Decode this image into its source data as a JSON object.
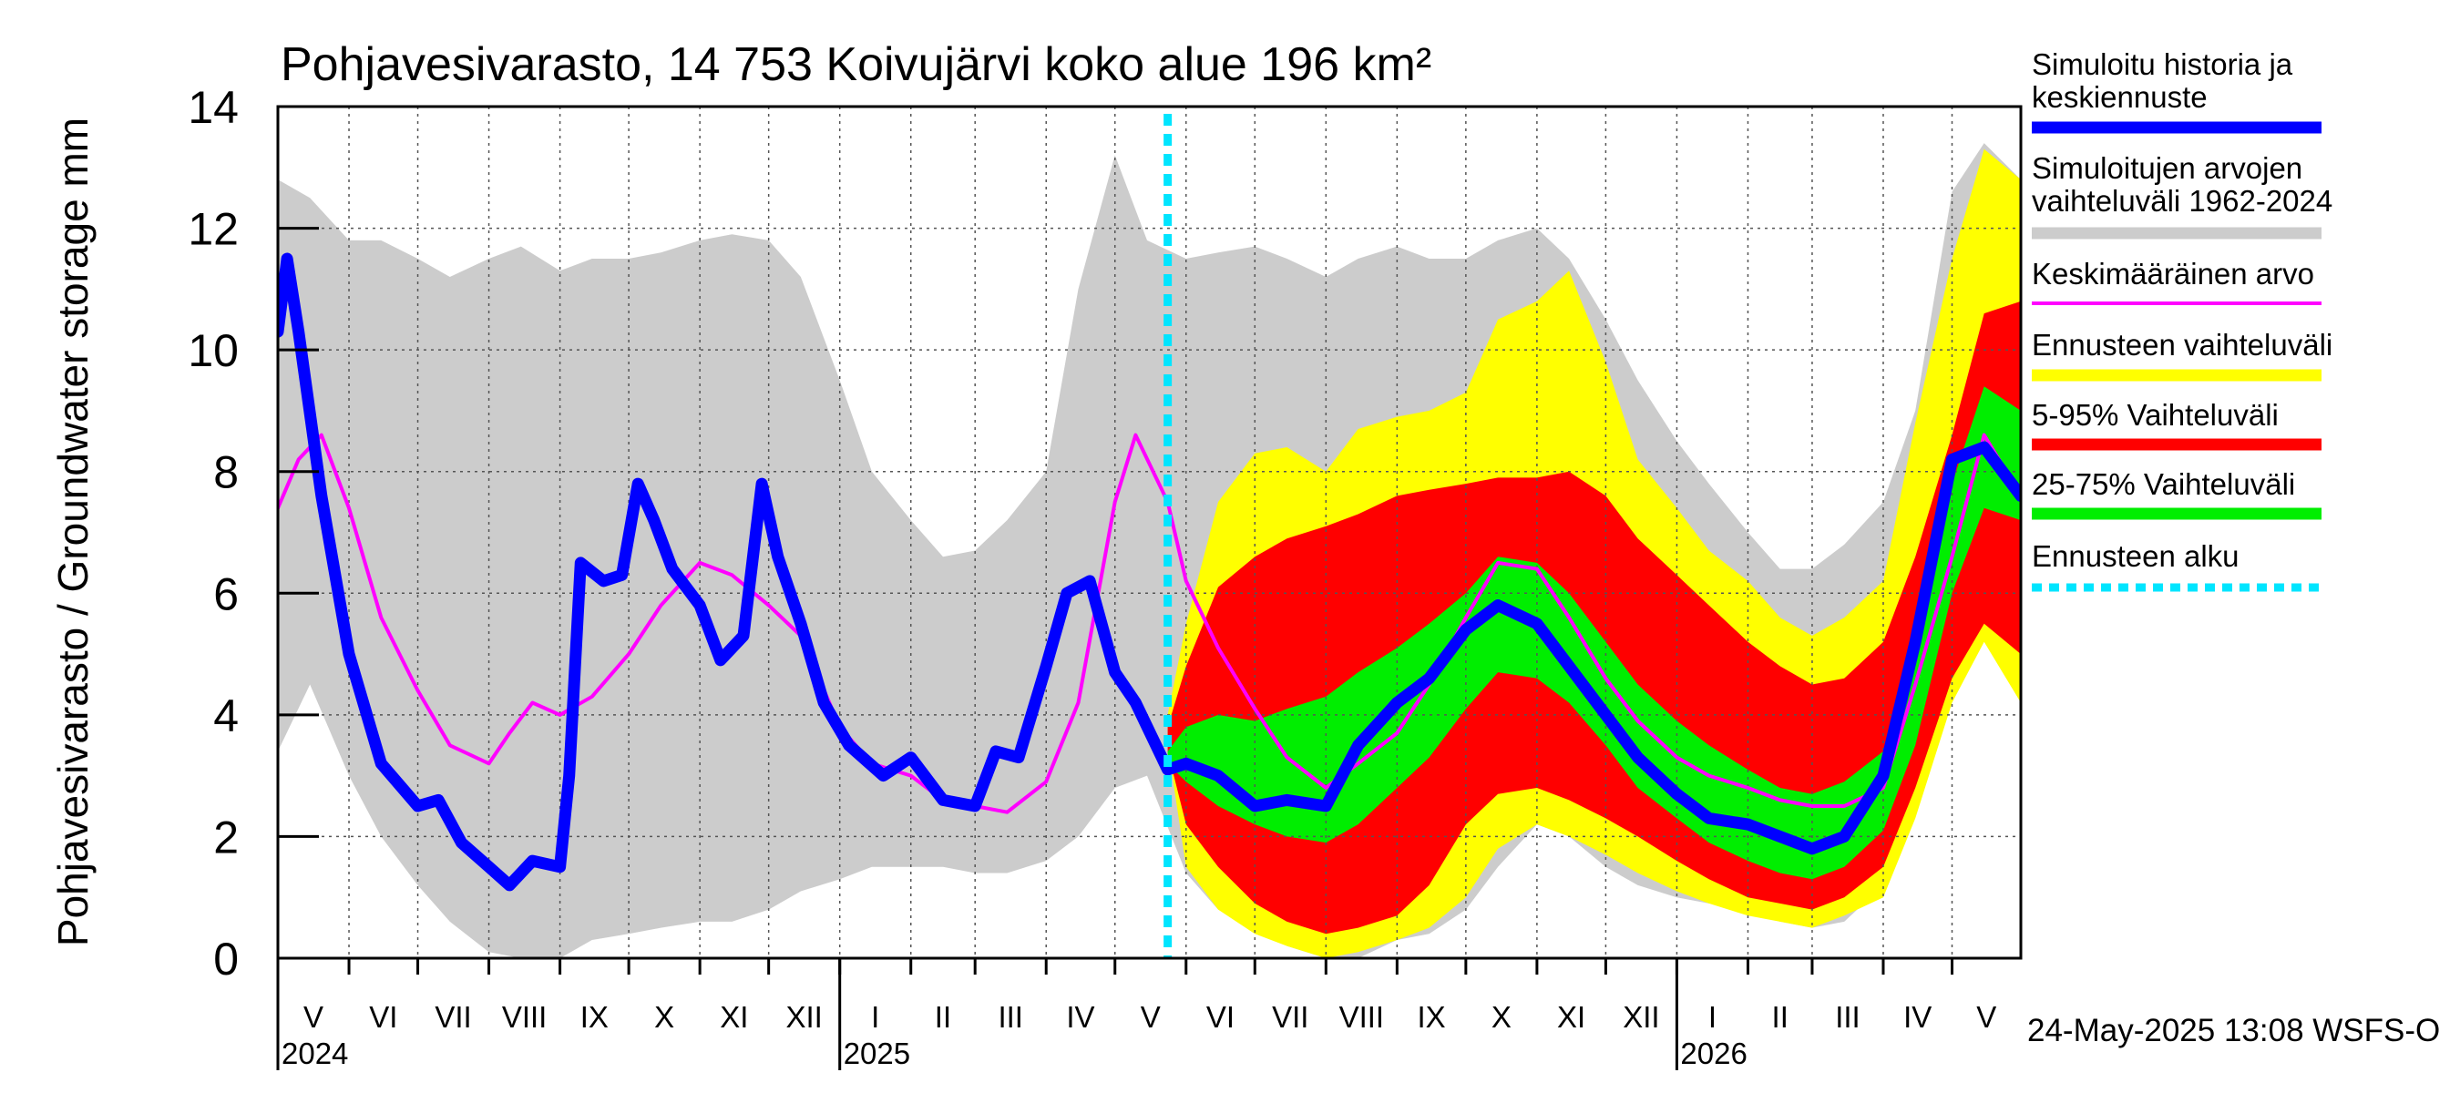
{
  "chart_data": {
    "type": "area",
    "title": "Pohjavesivarasto, 14 753 Koivujärvi koko alue 196 km²",
    "ylabel": "Pohjavesivarasto / Groundwater storage   mm",
    "ylim": [
      0,
      14
    ],
    "yticks": [
      "0",
      "2",
      "4",
      "6",
      "8",
      "10",
      "12",
      "14"
    ],
    "x_start": "2024-05-01",
    "x_end": "2026-05-31",
    "forecast_start": "2025-05-24",
    "months": [
      "V",
      "VI",
      "VII",
      "VIII",
      "IX",
      "X",
      "XI",
      "XII",
      "I",
      "II",
      "III",
      "IV",
      "V",
      "VI",
      "VII",
      "VIII",
      "IX",
      "X",
      "XI",
      "XII",
      "I",
      "II",
      "III",
      "IV",
      "V"
    ],
    "years": [
      {
        "label": "2024",
        "date": "2024-05-01"
      },
      {
        "label": "2025",
        "date": "2025-01-01"
      },
      {
        "label": "2026",
        "date": "2026-01-01"
      }
    ],
    "legend": [
      {
        "label": "Simuloitu historia ja keskiennuste",
        "color": "#0000ff",
        "style": "thick"
      },
      {
        "label": "Simuloitujen arvojen vaihteluväli 1962-2024",
        "color": "#cccccc",
        "style": "thick"
      },
      {
        "label": "Keskimääräinen arvo",
        "color": "#ff00ff",
        "style": "thin"
      },
      {
        "label": "Ennusteen vaihteluväli",
        "color": "#ffff00",
        "style": "thick"
      },
      {
        "label": "5-95% Vaihteluväli",
        "color": "#ff0000",
        "style": "thick"
      },
      {
        "label": "25-75% Vaihteluväli",
        "color": "#00ee00",
        "style": "thick"
      },
      {
        "label": "Ennusteen alku",
        "color": "#00e5ff",
        "style": "dotted"
      }
    ],
    "footer": "24-May-2025 13:08 WSFS-O",
    "series": [
      {
        "name": "Simuloitujen arvojen vaihteluväli 1962-2024",
        "kind": "band",
        "color": "#cccccc",
        "x": [
          "2024-05-01",
          "2024-05-15",
          "2024-06-01",
          "2024-06-15",
          "2024-07-01",
          "2024-07-15",
          "2024-08-01",
          "2024-08-15",
          "2024-09-01",
          "2024-09-15",
          "2024-10-01",
          "2024-10-15",
          "2024-11-01",
          "2024-11-15",
          "2024-12-01",
          "2024-12-15",
          "2025-01-01",
          "2025-01-15",
          "2025-02-01",
          "2025-02-15",
          "2025-03-01",
          "2025-03-15",
          "2025-04-01",
          "2025-04-15",
          "2025-05-01",
          "2025-05-15",
          "2025-06-01",
          "2025-06-15",
          "2025-07-01",
          "2025-07-15",
          "2025-08-01",
          "2025-08-15",
          "2025-09-01",
          "2025-09-15",
          "2025-10-01",
          "2025-10-15",
          "2025-11-01",
          "2025-11-15",
          "2025-12-01",
          "2025-12-15",
          "2026-01-01",
          "2026-01-15",
          "2026-02-01",
          "2026-02-15",
          "2026-03-01",
          "2026-03-15",
          "2026-04-01",
          "2026-04-15",
          "2026-05-01",
          "2026-05-15",
          "2026-05-31"
        ],
        "low": [
          3.4,
          4.5,
          3.0,
          2.0,
          1.2,
          0.6,
          0.1,
          0.0,
          0.0,
          0.3,
          0.4,
          0.5,
          0.6,
          0.6,
          0.8,
          1.1,
          1.3,
          1.5,
          1.5,
          1.5,
          1.4,
          1.4,
          1.6,
          2.0,
          2.8,
          3.0,
          1.4,
          0.8,
          0.6,
          0.2,
          0.0,
          0.0,
          0.3,
          0.4,
          0.8,
          1.5,
          2.2,
          2.0,
          1.5,
          1.2,
          1.0,
          0.9,
          0.8,
          0.6,
          0.5,
          0.6,
          1.2,
          2.5,
          4.5,
          5.3,
          4.5
        ],
        "high": [
          12.8,
          12.5,
          11.8,
          11.8,
          11.5,
          11.2,
          11.5,
          11.7,
          11.3,
          11.5,
          11.5,
          11.6,
          11.8,
          11.9,
          11.8,
          11.2,
          9.5,
          8.0,
          7.2,
          6.6,
          6.7,
          7.2,
          8.0,
          11.0,
          13.2,
          11.8,
          11.5,
          11.6,
          11.7,
          11.5,
          11.2,
          11.5,
          11.7,
          11.5,
          11.5,
          11.8,
          12.0,
          11.5,
          10.5,
          9.5,
          8.5,
          7.8,
          7.0,
          6.4,
          6.4,
          6.8,
          7.5,
          9.0,
          12.6,
          13.4,
          12.8
        ]
      },
      {
        "name": "Ennusteen vaihteluväli",
        "kind": "band",
        "color": "#ffff00",
        "x": [
          "2025-05-24",
          "2025-06-01",
          "2025-06-15",
          "2025-07-01",
          "2025-07-15",
          "2025-08-01",
          "2025-08-15",
          "2025-09-01",
          "2025-09-15",
          "2025-10-01",
          "2025-10-15",
          "2025-11-01",
          "2025-11-15",
          "2025-12-01",
          "2025-12-15",
          "2026-01-01",
          "2026-01-15",
          "2026-02-01",
          "2026-02-15",
          "2026-03-01",
          "2026-03-15",
          "2026-04-01",
          "2026-04-15",
          "2026-05-01",
          "2026-05-15",
          "2026-05-31"
        ],
        "low": [
          3.5,
          1.5,
          0.8,
          0.4,
          0.2,
          0.0,
          0.1,
          0.3,
          0.5,
          1.0,
          1.8,
          2.2,
          2.0,
          1.7,
          1.4,
          1.1,
          0.9,
          0.7,
          0.6,
          0.5,
          0.7,
          1.0,
          2.3,
          4.2,
          5.2,
          4.2
        ],
        "high": [
          4.0,
          5.5,
          7.5,
          8.3,
          8.4,
          8.0,
          8.7,
          8.9,
          9.0,
          9.3,
          10.5,
          10.8,
          11.3,
          9.8,
          8.2,
          7.4,
          6.7,
          6.2,
          5.6,
          5.3,
          5.6,
          6.2,
          8.8,
          11.5,
          13.3,
          12.8
        ]
      },
      {
        "name": "5-95% Vaihteluväli",
        "kind": "band",
        "color": "#ff0000",
        "x": [
          "2025-05-24",
          "2025-06-01",
          "2025-06-15",
          "2025-07-01",
          "2025-07-15",
          "2025-08-01",
          "2025-08-15",
          "2025-09-01",
          "2025-09-15",
          "2025-10-01",
          "2025-10-15",
          "2025-11-01",
          "2025-11-15",
          "2025-12-01",
          "2025-12-15",
          "2026-01-01",
          "2026-01-15",
          "2026-02-01",
          "2026-02-15",
          "2026-03-01",
          "2026-03-15",
          "2026-04-01",
          "2026-04-15",
          "2026-05-01",
          "2026-05-15",
          "2026-05-31"
        ],
        "low": [
          3.4,
          2.2,
          1.5,
          0.9,
          0.6,
          0.4,
          0.5,
          0.7,
          1.2,
          2.2,
          2.7,
          2.8,
          2.6,
          2.3,
          2.0,
          1.6,
          1.3,
          1.0,
          0.9,
          0.8,
          1.0,
          1.5,
          2.8,
          4.6,
          5.5,
          5.0
        ],
        "high": [
          3.8,
          4.8,
          6.1,
          6.6,
          6.9,
          7.1,
          7.3,
          7.6,
          7.7,
          7.8,
          7.9,
          7.9,
          8.0,
          7.6,
          6.9,
          6.3,
          5.8,
          5.2,
          4.8,
          4.5,
          4.6,
          5.2,
          6.6,
          8.6,
          10.6,
          10.8
        ]
      },
      {
        "name": "25-75% Vaihteluväli",
        "kind": "band",
        "color": "#00ee00",
        "x": [
          "2025-05-24",
          "2025-06-01",
          "2025-06-15",
          "2025-07-01",
          "2025-07-15",
          "2025-08-01",
          "2025-08-15",
          "2025-09-01",
          "2025-09-15",
          "2025-10-01",
          "2025-10-15",
          "2025-11-01",
          "2025-11-15",
          "2025-12-01",
          "2025-12-15",
          "2026-01-01",
          "2026-01-15",
          "2026-02-01",
          "2026-02-15",
          "2026-03-01",
          "2026-03-15",
          "2026-04-01",
          "2026-04-15",
          "2026-05-01",
          "2026-05-15",
          "2026-05-31"
        ],
        "low": [
          3.2,
          2.9,
          2.5,
          2.2,
          2.0,
          1.9,
          2.2,
          2.8,
          3.3,
          4.1,
          4.7,
          4.6,
          4.2,
          3.5,
          2.8,
          2.3,
          1.9,
          1.6,
          1.4,
          1.3,
          1.5,
          2.1,
          3.5,
          6.0,
          7.4,
          7.2
        ],
        "high": [
          3.4,
          3.8,
          4.0,
          3.9,
          4.1,
          4.3,
          4.7,
          5.1,
          5.5,
          6.0,
          6.6,
          6.5,
          6.0,
          5.2,
          4.5,
          3.9,
          3.5,
          3.1,
          2.8,
          2.7,
          2.9,
          3.4,
          5.0,
          7.8,
          9.4,
          9.0
        ]
      },
      {
        "name": "Keskimääräinen arvo",
        "kind": "line",
        "color": "#ff00ff",
        "x": [
          "2024-05-01",
          "2024-05-10",
          "2024-05-20",
          "2024-06-01",
          "2024-06-15",
          "2024-07-01",
          "2024-07-15",
          "2024-08-01",
          "2024-08-10",
          "2024-08-20",
          "2024-09-01",
          "2024-09-15",
          "2024-10-01",
          "2024-10-15",
          "2024-11-01",
          "2024-11-15",
          "2024-12-01",
          "2024-12-15",
          "2025-01-01",
          "2025-01-15",
          "2025-02-01",
          "2025-02-15",
          "2025-03-01",
          "2025-03-15",
          "2025-04-01",
          "2025-04-15",
          "2025-05-01",
          "2025-05-10",
          "2025-05-24",
          "2025-06-01",
          "2025-06-15",
          "2025-07-01",
          "2025-07-15",
          "2025-08-01",
          "2025-08-15",
          "2025-09-01",
          "2025-09-15",
          "2025-10-01",
          "2025-10-15",
          "2025-11-01",
          "2025-11-15",
          "2025-12-01",
          "2025-12-15",
          "2026-01-01",
          "2026-01-15",
          "2026-02-01",
          "2026-02-15",
          "2026-03-01",
          "2026-03-15",
          "2026-04-01",
          "2026-04-15",
          "2026-05-01",
          "2026-05-15",
          "2026-05-31"
        ],
        "y": [
          7.4,
          8.2,
          8.6,
          7.4,
          5.6,
          4.4,
          3.5,
          3.2,
          3.7,
          4.2,
          4.0,
          4.3,
          5.0,
          5.8,
          6.5,
          6.3,
          5.8,
          5.3,
          3.8,
          3.2,
          3.0,
          2.6,
          2.5,
          2.4,
          2.9,
          4.2,
          7.5,
          8.6,
          7.5,
          6.2,
          5.1,
          4.1,
          3.3,
          2.8,
          3.2,
          3.7,
          4.5,
          5.6,
          6.5,
          6.4,
          5.6,
          4.6,
          3.9,
          3.3,
          3.0,
          2.8,
          2.6,
          2.5,
          2.5,
          2.8,
          4.5,
          6.6,
          8.6,
          7.6
        ]
      },
      {
        "name": "Simuloitu historia ja keskiennuste",
        "kind": "line",
        "color": "#0000ff",
        "x": [
          "2024-05-01",
          "2024-05-05",
          "2024-05-10",
          "2024-05-20",
          "2024-06-01",
          "2024-06-15",
          "2024-07-01",
          "2024-07-10",
          "2024-07-20",
          "2024-08-01",
          "2024-08-10",
          "2024-08-20",
          "2024-09-01",
          "2024-09-05",
          "2024-09-10",
          "2024-09-20",
          "2024-09-28",
          "2024-10-05",
          "2024-10-12",
          "2024-10-20",
          "2024-11-01",
          "2024-11-10",
          "2024-11-20",
          "2024-11-28",
          "2024-12-05",
          "2024-12-15",
          "2024-12-25",
          "2025-01-05",
          "2025-01-20",
          "2025-02-01",
          "2025-02-15",
          "2025-03-01",
          "2025-03-10",
          "2025-03-20",
          "2025-04-01",
          "2025-04-10",
          "2025-04-20",
          "2025-05-01",
          "2025-05-10",
          "2025-05-24",
          "2025-06-01",
          "2025-06-15",
          "2025-07-01",
          "2025-07-15",
          "2025-08-01",
          "2025-08-15",
          "2025-09-01",
          "2025-09-15",
          "2025-10-01",
          "2025-10-15",
          "2025-11-01",
          "2025-11-15",
          "2025-12-01",
          "2025-12-15",
          "2026-01-01",
          "2026-01-15",
          "2026-02-01",
          "2026-02-15",
          "2026-03-01",
          "2026-03-15",
          "2026-04-01",
          "2026-04-15",
          "2026-05-01",
          "2026-05-15",
          "2026-05-31"
        ],
        "y": [
          10.3,
          11.5,
          10.3,
          7.6,
          5.0,
          3.2,
          2.5,
          2.6,
          1.9,
          1.5,
          1.2,
          1.6,
          1.5,
          3.0,
          6.5,
          6.2,
          6.3,
          7.8,
          7.2,
          6.4,
          5.8,
          4.9,
          5.3,
          7.8,
          6.6,
          5.5,
          4.2,
          3.5,
          3.0,
          3.3,
          2.6,
          2.5,
          3.4,
          3.3,
          4.8,
          6.0,
          6.2,
          4.7,
          4.2,
          3.1,
          3.2,
          3.0,
          2.5,
          2.6,
          2.5,
          3.5,
          4.2,
          4.6,
          5.4,
          5.8,
          5.5,
          4.8,
          4.0,
          3.3,
          2.7,
          2.3,
          2.2,
          2.0,
          1.8,
          2.0,
          3.0,
          5.2,
          8.2,
          8.4,
          7.6
        ]
      }
    ]
  }
}
